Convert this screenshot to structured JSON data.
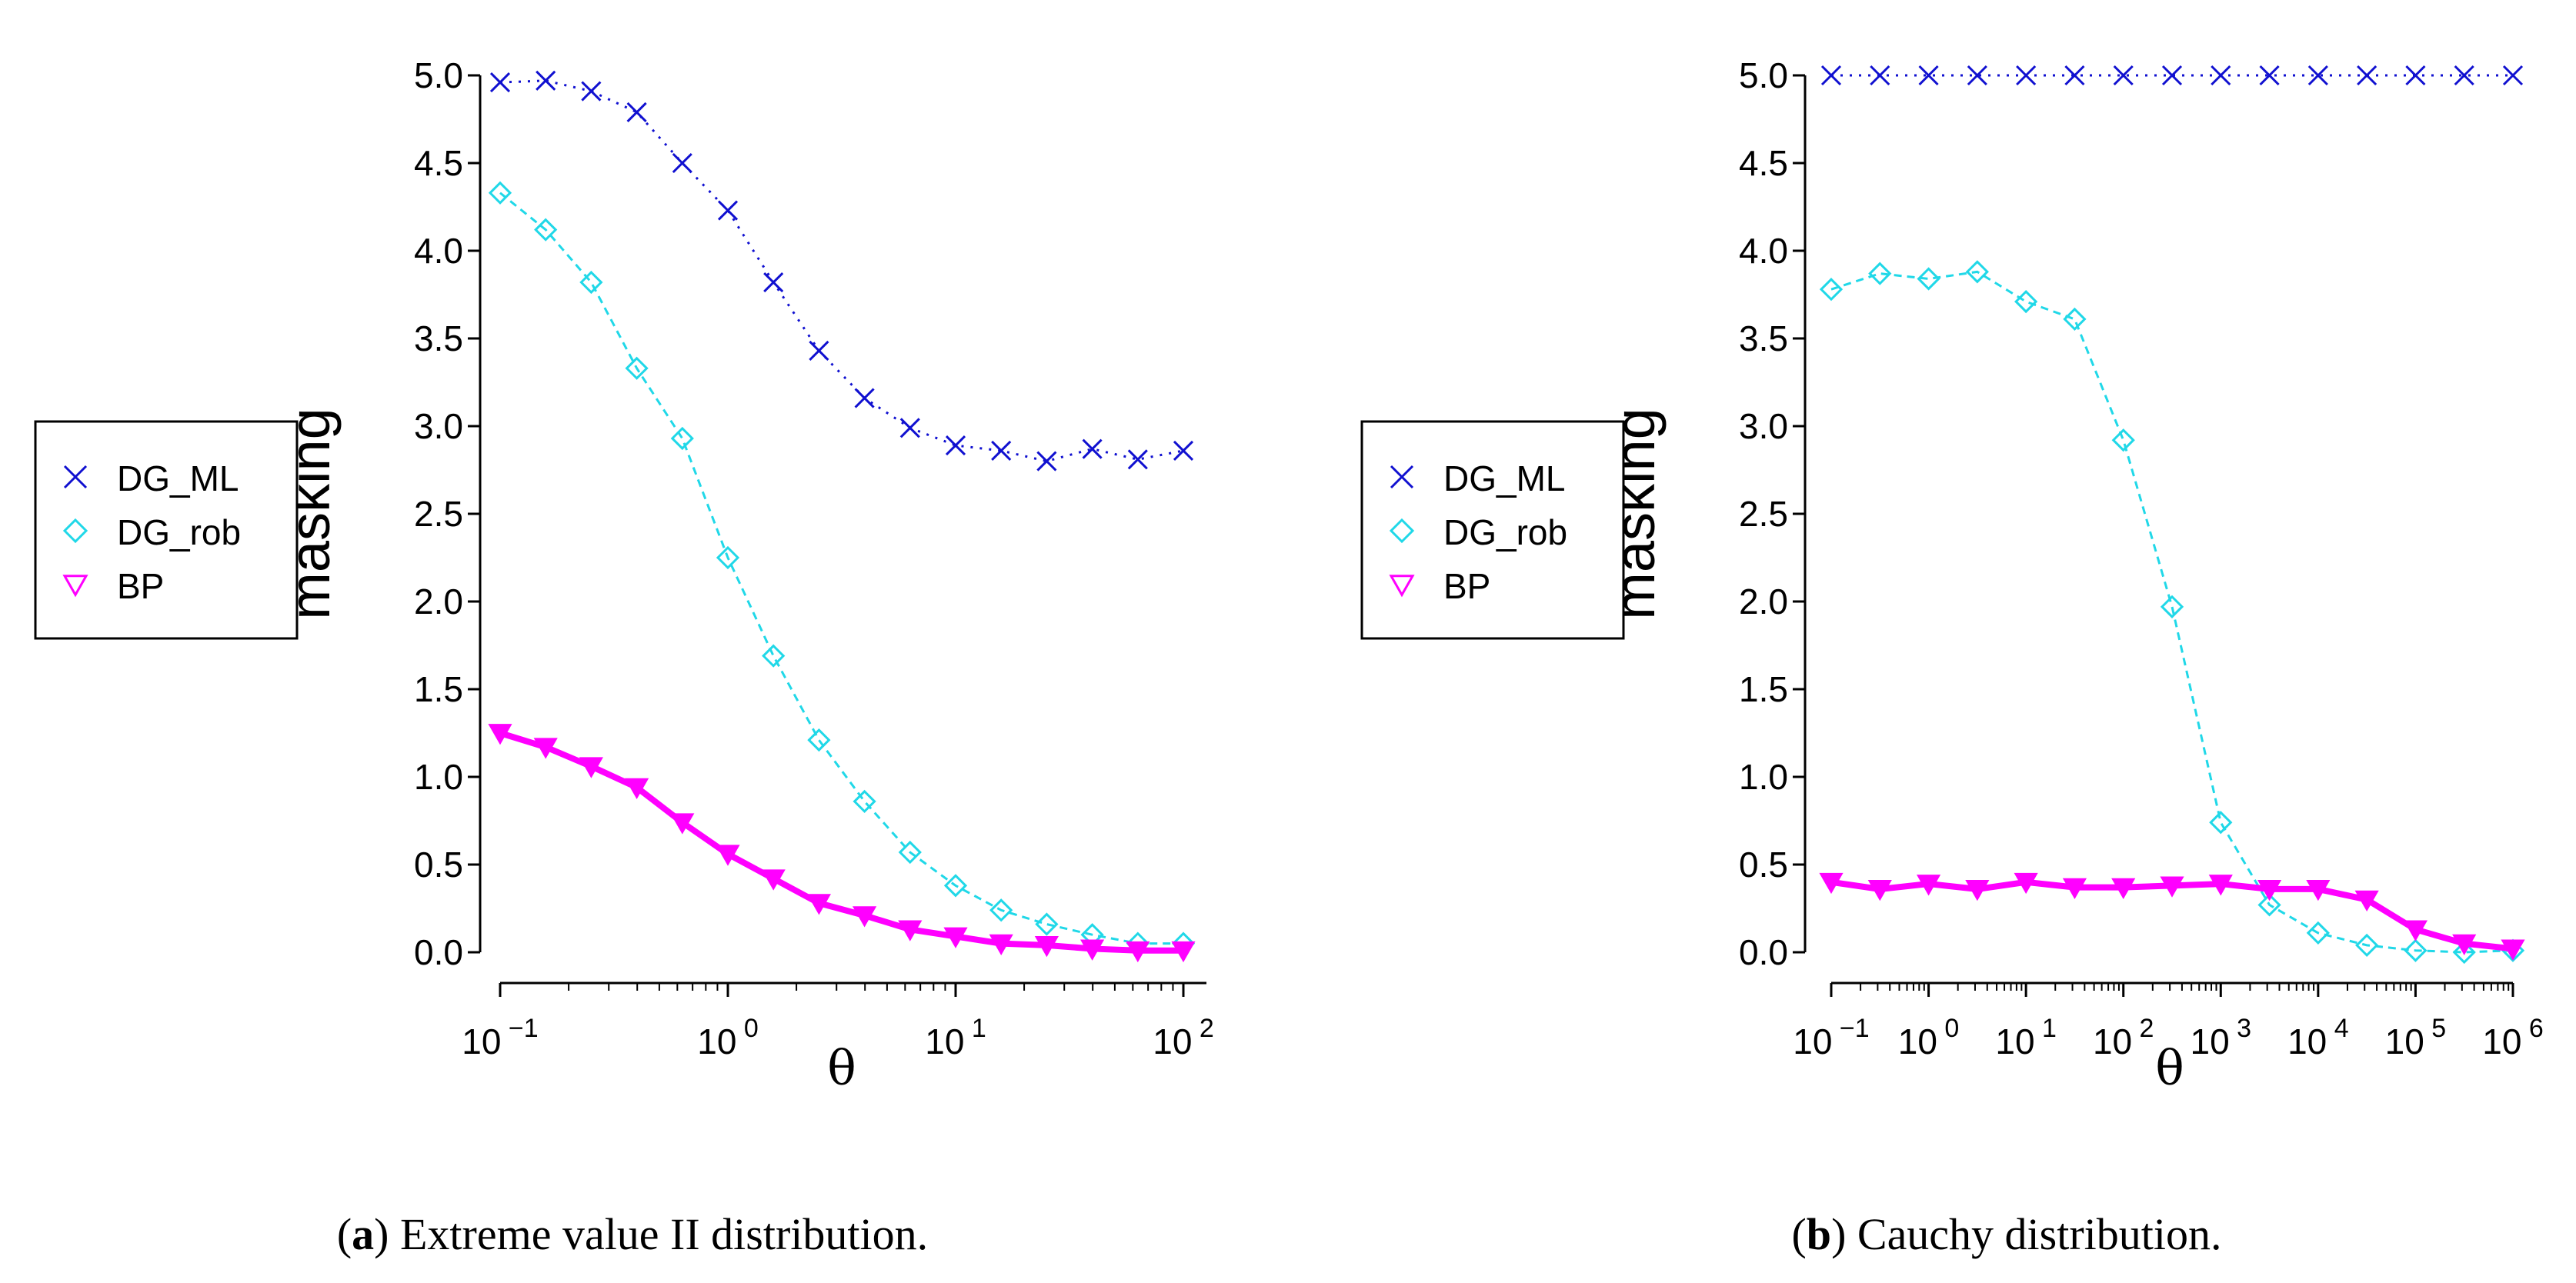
{
  "colors": {
    "DG_ML": "#1010d0",
    "DG_rob": "#20d8e8",
    "BP": "#ff00ff"
  },
  "chart_data": [
    {
      "type": "line",
      "title": "Extreme value II distribution.",
      "panel_letter": "a",
      "caption": {
        "open": "(",
        "letter": "a",
        "close": ")",
        "text": " Extreme value II distribution."
      },
      "xlabel": "θ",
      "ylabel": "masking",
      "xscale": "log",
      "xlim": [
        0.1,
        100
      ],
      "ylim": [
        0,
        5
      ],
      "yticks": [
        "0.0",
        "0.5",
        "1.0",
        "1.5",
        "2.0",
        "2.5",
        "3.0",
        "3.5",
        "4.0",
        "4.5",
        "5.0"
      ],
      "xticks": [
        {
          "base": "10",
          "exp": "−1",
          "exp_value": -1
        },
        {
          "base": "10",
          "exp": "0",
          "exp_value": 0
        },
        {
          "base": "10",
          "exp": "1",
          "exp_value": 1
        },
        {
          "base": "10",
          "exp": "2",
          "exp_value": 2
        }
      ],
      "legend": {
        "position": "left",
        "entries": [
          "DG_ML",
          "DG_rob",
          "BP"
        ]
      },
      "x_log10": [
        -1,
        -0.8,
        -0.6,
        -0.4,
        -0.2,
        0,
        0.2,
        0.4,
        0.6,
        0.8,
        1,
        1.2,
        1.4,
        1.6,
        1.8,
        2
      ],
      "series": [
        {
          "name": "DG_ML",
          "values": [
            4.96,
            4.97,
            4.91,
            4.79,
            4.5,
            4.23,
            3.82,
            3.43,
            3.16,
            2.99,
            2.89,
            2.86,
            2.8,
            2.87,
            2.81,
            2.86
          ]
        },
        {
          "name": "DG_rob",
          "values": [
            4.33,
            4.12,
            3.82,
            3.33,
            2.93,
            2.25,
            1.69,
            1.21,
            0.86,
            0.57,
            0.38,
            0.24,
            0.16,
            0.1,
            0.05,
            0.05
          ]
        },
        {
          "name": "BP",
          "values": [
            1.25,
            1.17,
            1.06,
            0.94,
            0.74,
            0.56,
            0.42,
            0.28,
            0.21,
            0.13,
            0.09,
            0.05,
            0.04,
            0.02,
            0.01,
            0.01
          ]
        }
      ]
    },
    {
      "type": "line",
      "title": "Cauchy distribution.",
      "panel_letter": "b",
      "caption": {
        "open": "(",
        "letter": "b",
        "close": ")",
        "text": " Cauchy distribution."
      },
      "xlabel": "θ",
      "ylabel": "masking",
      "xscale": "log",
      "xlim": [
        0.1,
        1000000
      ],
      "ylim": [
        0,
        5
      ],
      "yticks": [
        "0.0",
        "0.5",
        "1.0",
        "1.5",
        "2.0",
        "2.5",
        "3.0",
        "3.5",
        "4.0",
        "4.5",
        "5.0"
      ],
      "xticks": [
        {
          "base": "10",
          "exp": "−1",
          "exp_value": -1
        },
        {
          "base": "10",
          "exp": "0",
          "exp_value": 0
        },
        {
          "base": "10",
          "exp": "1",
          "exp_value": 1
        },
        {
          "base": "10",
          "exp": "2",
          "exp_value": 2
        },
        {
          "base": "10",
          "exp": "3",
          "exp_value": 3
        },
        {
          "base": "10",
          "exp": "4",
          "exp_value": 4
        },
        {
          "base": "10",
          "exp": "5",
          "exp_value": 5
        },
        {
          "base": "10",
          "exp": "6",
          "exp_value": 6
        }
      ],
      "legend": {
        "position": "left",
        "entries": [
          "DG_ML",
          "DG_rob",
          "BP"
        ]
      },
      "x_log10": [
        -1,
        -0.5,
        0,
        0.5,
        1,
        1.5,
        2,
        2.5,
        3,
        3.5,
        4,
        4.5,
        5,
        5.5,
        6
      ],
      "series": [
        {
          "name": "DG_ML",
          "values": [
            5.0,
            5.0,
            5.0,
            5.0,
            5.0,
            5.0,
            5.0,
            5.0,
            5.0,
            5.0,
            5.0,
            5.0,
            5.0,
            5.0,
            5.0
          ]
        },
        {
          "name": "DG_rob",
          "values": [
            3.78,
            3.87,
            3.84,
            3.88,
            3.71,
            3.61,
            2.92,
            1.97,
            0.74,
            0.27,
            0.11,
            0.04,
            0.01,
            0.0,
            0.01
          ]
        },
        {
          "name": "BP",
          "values": [
            0.4,
            0.36,
            0.39,
            0.36,
            0.4,
            0.37,
            0.37,
            0.38,
            0.39,
            0.36,
            0.36,
            0.3,
            0.13,
            0.05,
            0.02
          ]
        }
      ]
    }
  ]
}
